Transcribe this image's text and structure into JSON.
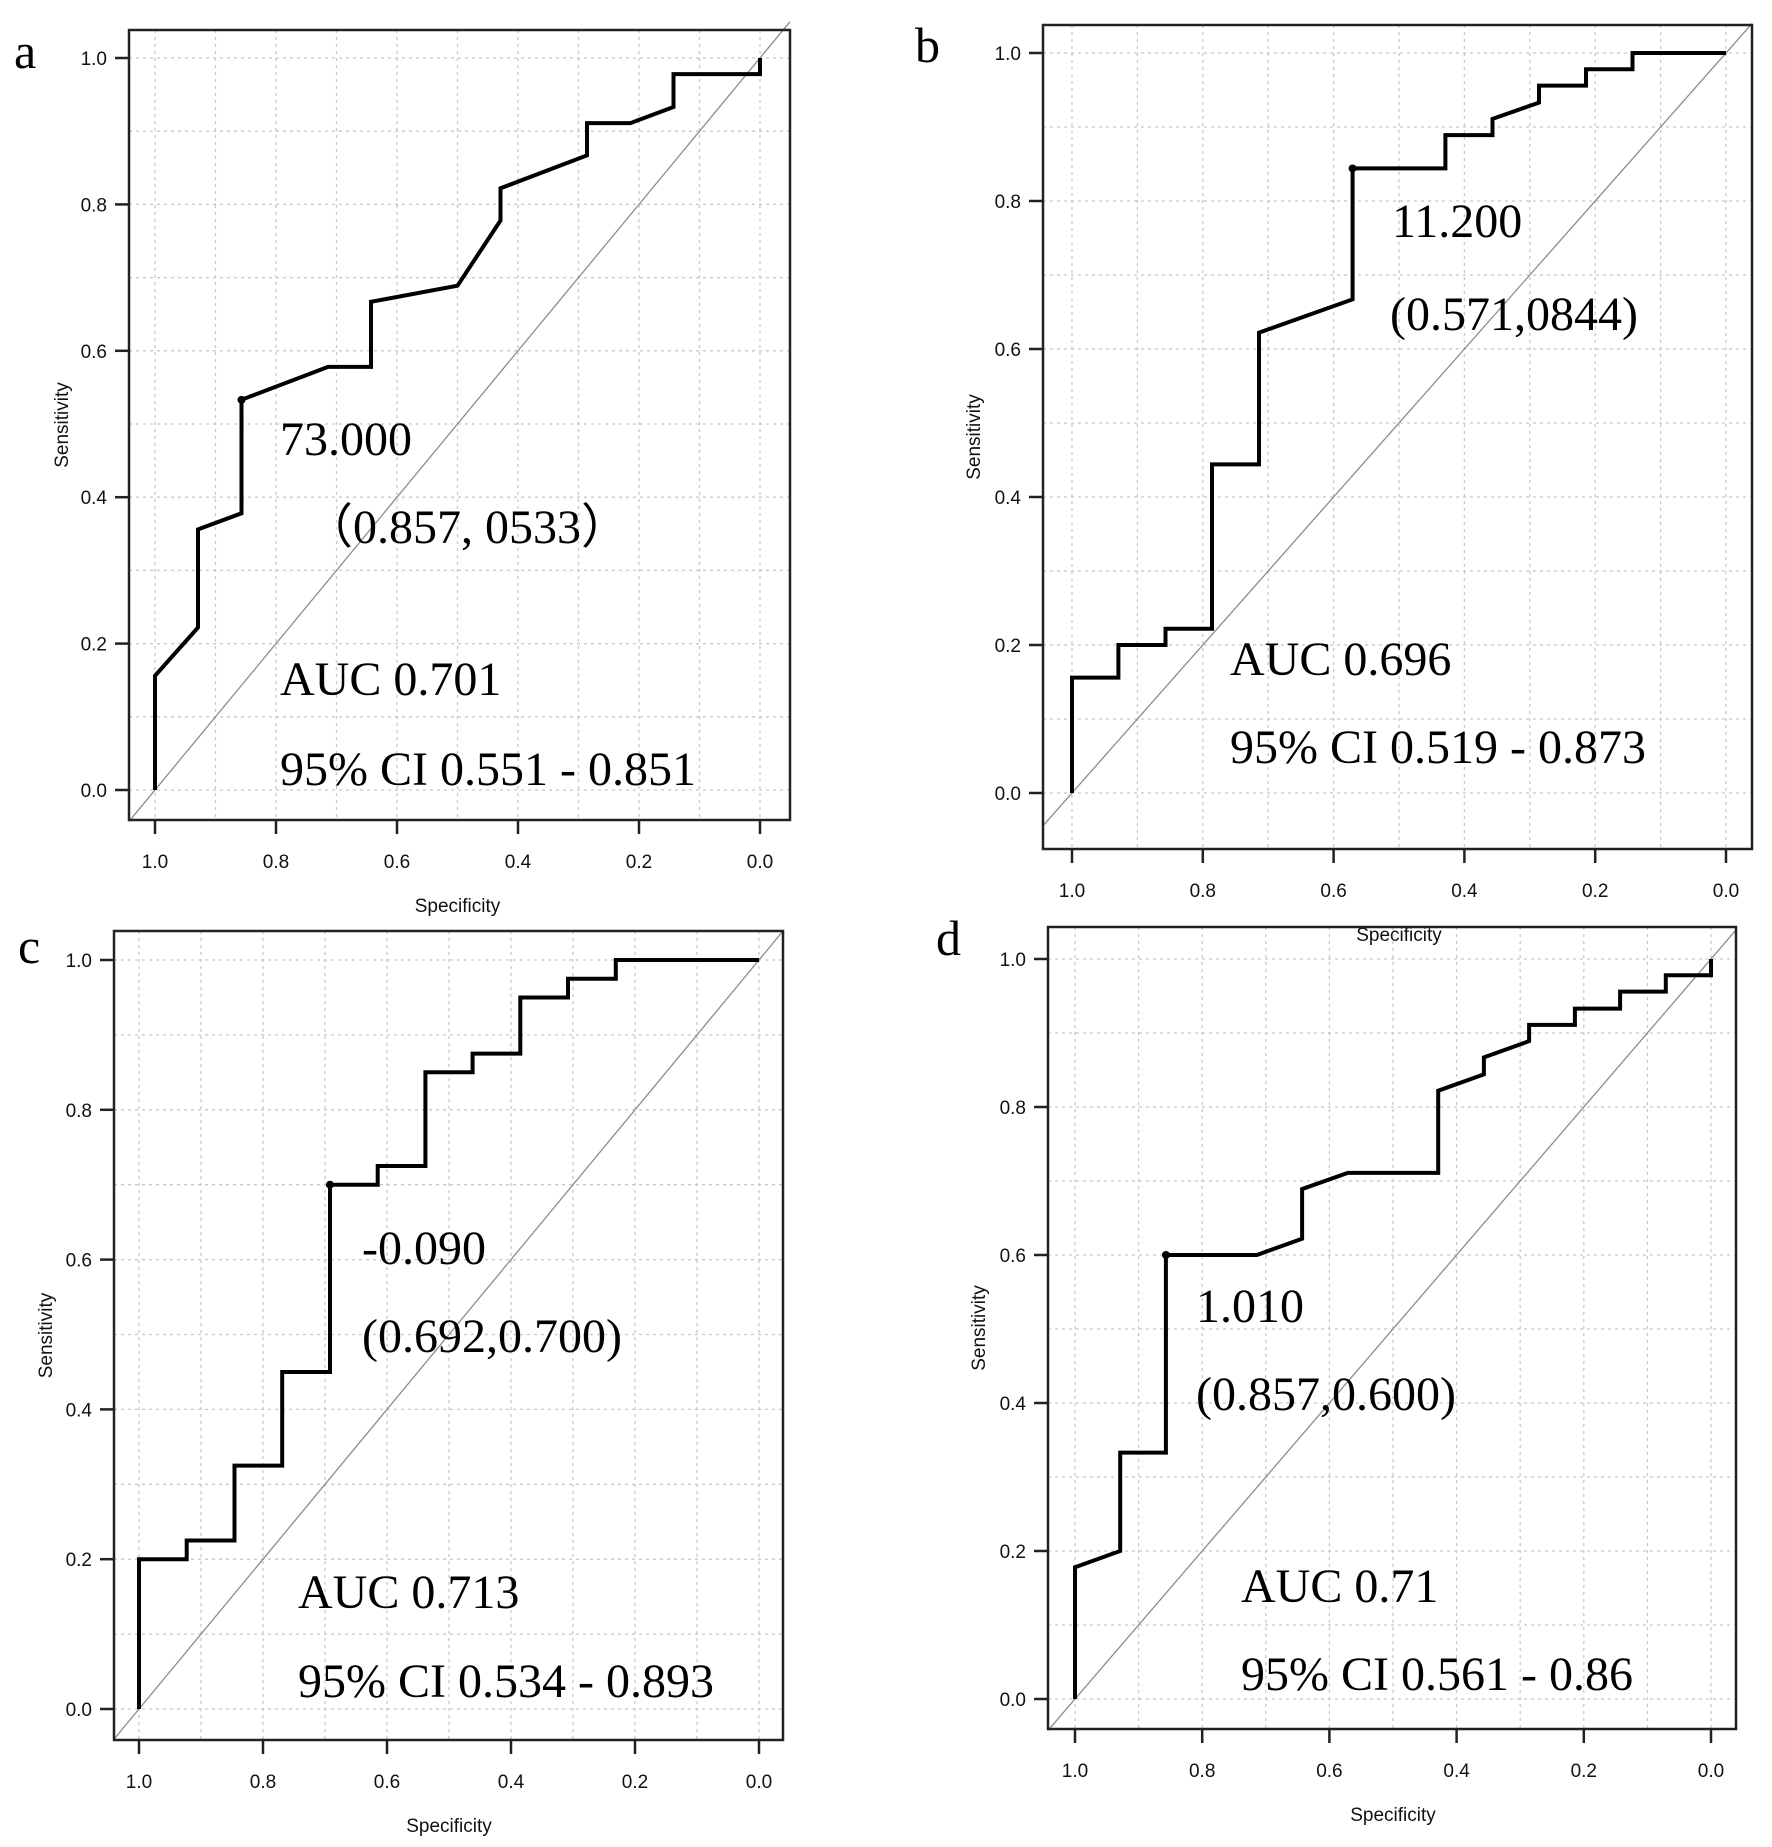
{
  "chart_data": [
    {
      "panel": "a",
      "type": "line",
      "title": "",
      "xlabel": "Specificity",
      "ylabel": "Sensitivity",
      "xlim": [
        1.0,
        0.0
      ],
      "ylim": [
        0.0,
        1.0
      ],
      "x_ticks": [
        "1.0",
        "0.8",
        "0.6",
        "0.4",
        "0.2",
        "0.0"
      ],
      "y_ticks": [
        "0.0",
        "0.2",
        "0.4",
        "0.6",
        "0.8",
        "1.0"
      ],
      "grid": true,
      "series": [
        {
          "name": "ROC",
          "specificity": [
            1.0,
            1.0,
            0.929,
            0.929,
            0.857,
            0.857,
            0.714,
            0.643,
            0.643,
            0.5,
            0.429,
            0.429,
            0.286,
            0.286,
            0.214,
            0.143,
            0.143,
            0.0,
            0.0
          ],
          "sensitivity": [
            0.0,
            0.156,
            0.222,
            0.356,
            0.378,
            0.533,
            0.578,
            0.578,
            0.667,
            0.689,
            0.778,
            0.822,
            0.867,
            0.911,
            0.911,
            0.933,
            0.978,
            0.978,
            1.0
          ]
        }
      ],
      "cutoff_point": {
        "specificity": 0.857,
        "sensitivity": 0.533
      },
      "annotations": [
        "73.000",
        "（0.857,   0533）",
        "AUC 0.701",
        "95% CI 0.551 - 0.851"
      ]
    },
    {
      "panel": "b",
      "type": "line",
      "title": "",
      "xlabel": "Specificity",
      "ylabel": "Sensitivity",
      "xlim": [
        1.0,
        0.0
      ],
      "ylim": [
        0.0,
        1.0
      ],
      "x_ticks": [
        "1.0",
        "0.8",
        "0.6",
        "0.4",
        "0.2",
        "0.0"
      ],
      "y_ticks": [
        "0.0",
        "0.2",
        "0.4",
        "0.6",
        "0.8",
        "1.0"
      ],
      "grid": true,
      "series": [
        {
          "name": "ROC",
          "specificity": [
            1.0,
            1.0,
            0.929,
            0.929,
            0.857,
            0.857,
            0.786,
            0.786,
            0.714,
            0.714,
            0.571,
            0.571,
            0.429,
            0.429,
            0.357,
            0.357,
            0.286,
            0.286,
            0.214,
            0.214,
            0.143,
            0.143,
            0.0
          ],
          "sensitivity": [
            0.0,
            0.156,
            0.156,
            0.2,
            0.2,
            0.222,
            0.222,
            0.444,
            0.444,
            0.622,
            0.667,
            0.844,
            0.844,
            0.889,
            0.889,
            0.911,
            0.933,
            0.956,
            0.956,
            0.978,
            0.978,
            1.0,
            1.0
          ]
        }
      ],
      "cutoff_point": {
        "specificity": 0.571,
        "sensitivity": 0.844
      },
      "annotations": [
        "11.200",
        "(0.571,0844)",
        "AUC 0.696",
        "95% CI 0.519 - 0.873"
      ]
    },
    {
      "panel": "c",
      "type": "line",
      "title": "",
      "xlabel": "Specificity",
      "ylabel": "Sensitivity",
      "xlim": [
        1.0,
        0.0
      ],
      "ylim": [
        0.0,
        1.0
      ],
      "x_ticks": [
        "1.0",
        "0.8",
        "0.6",
        "0.4",
        "0.2",
        "0.0"
      ],
      "y_ticks": [
        "0.0",
        "0.2",
        "0.4",
        "0.6",
        "0.8",
        "1.0"
      ],
      "grid": true,
      "series": [
        {
          "name": "ROC",
          "specificity": [
            1.0,
            1.0,
            0.923,
            0.923,
            0.846,
            0.846,
            0.769,
            0.769,
            0.692,
            0.692,
            0.615,
            0.615,
            0.538,
            0.538,
            0.462,
            0.462,
            0.385,
            0.385,
            0.308,
            0.308,
            0.231,
            0.231,
            0.0
          ],
          "sensitivity": [
            0.0,
            0.2,
            0.2,
            0.225,
            0.225,
            0.325,
            0.325,
            0.45,
            0.45,
            0.7,
            0.7,
            0.725,
            0.725,
            0.85,
            0.85,
            0.875,
            0.875,
            0.95,
            0.95,
            0.975,
            0.975,
            1.0,
            1.0
          ]
        }
      ],
      "cutoff_point": {
        "specificity": 0.692,
        "sensitivity": 0.7
      },
      "annotations": [
        "-0.090",
        "(0.692,0.700)",
        "AUC 0.713",
        "95% CI 0.534 - 0.893"
      ]
    },
    {
      "panel": "d",
      "type": "line",
      "title": "",
      "xlabel": "Specificity",
      "ylabel": "Sensitivity",
      "xlim": [
        1.0,
        0.0
      ],
      "ylim": [
        0.0,
        1.0
      ],
      "x_ticks": [
        "1.0",
        "0.8",
        "0.6",
        "0.4",
        "0.2",
        "0.0"
      ],
      "y_ticks": [
        "0.0",
        "0.2",
        "0.4",
        "0.6",
        "0.8",
        "1.0"
      ],
      "grid": true,
      "series": [
        {
          "name": "ROC",
          "specificity": [
            1.0,
            1.0,
            0.929,
            0.929,
            0.857,
            0.857,
            0.714,
            0.643,
            0.643,
            0.571,
            0.429,
            0.429,
            0.357,
            0.357,
            0.286,
            0.286,
            0.214,
            0.214,
            0.143,
            0.143,
            0.071,
            0.071,
            0.0,
            0.0
          ],
          "sensitivity": [
            0.0,
            0.178,
            0.2,
            0.333,
            0.333,
            0.6,
            0.6,
            0.622,
            0.689,
            0.711,
            0.711,
            0.822,
            0.844,
            0.867,
            0.889,
            0.911,
            0.911,
            0.933,
            0.933,
            0.956,
            0.956,
            0.978,
            0.978,
            1.0
          ]
        }
      ],
      "cutoff_point": {
        "specificity": 0.857,
        "sensitivity": 0.6
      },
      "annotations": [
        "1.010",
        "(0.857,0.600)",
        "AUC 0.71",
        "95% CI 0.561 - 0.86"
      ]
    }
  ]
}
